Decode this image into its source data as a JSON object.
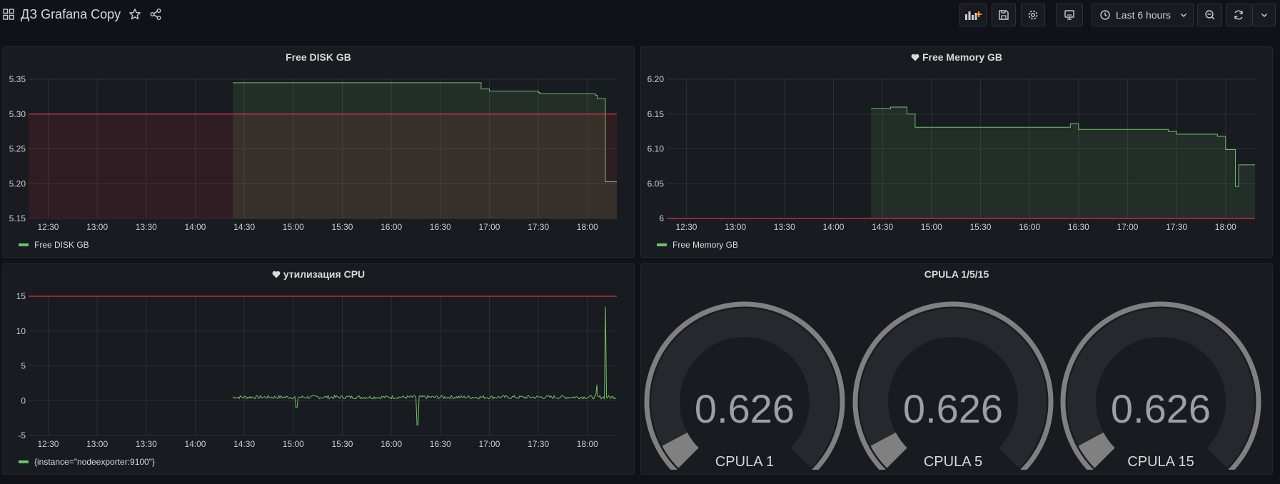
{
  "dashboard": {
    "title": "ДЗ Grafana Copy",
    "time_range": "Last 6 hours"
  },
  "toolbar": {
    "icons": [
      "add-panel-icon",
      "save-icon",
      "settings-icon",
      "tv-mode-icon",
      "clock-icon",
      "zoom-out-icon",
      "refresh-icon",
      "chevron-down-icon"
    ]
  },
  "colors": {
    "series_green": "#73bf69",
    "threshold_red": "#e02f44",
    "background": "#111217",
    "panel_bg": "#181b1f"
  },
  "x_ticks": [
    "12:30",
    "13:00",
    "13:30",
    "14:00",
    "14:30",
    "15:00",
    "15:30",
    "16:00",
    "16:30",
    "17:00",
    "17:30",
    "18:00"
  ],
  "panels": {
    "disk": {
      "title": "Free DISK GB",
      "legend": "Free DISK GB",
      "y_ticks": [
        "5.35",
        "5.30",
        "5.25",
        "5.20",
        "5.15"
      ]
    },
    "memory": {
      "title": "Free Memory GB",
      "legend": "Free Memory GB",
      "y_ticks": [
        "6.20",
        "6.15",
        "6.10",
        "6.05",
        "6"
      ]
    },
    "cpu": {
      "title": "утилизация CPU",
      "legend": "{instance=\"nodeexporter:9100\"}",
      "y_ticks": [
        "15",
        "10",
        "5",
        "0",
        "-5"
      ]
    },
    "cpula": {
      "title": "CPULA 1/5/15",
      "gauges": [
        {
          "label": "CPULA 1",
          "value": "0.626",
          "fraction": 0.0626
        },
        {
          "label": "CPULA 5",
          "value": "0.626",
          "fraction": 0.0626
        },
        {
          "label": "CPULA 15",
          "value": "0.626",
          "fraction": 0.0626
        }
      ]
    }
  },
  "chart_data": [
    {
      "type": "area",
      "title": "Free DISK GB",
      "x": [
        "14:23",
        "16:55",
        "17:00",
        "17:30",
        "17:31",
        "18:05",
        "18:06",
        "18:10",
        "18:11",
        "18:18"
      ],
      "series": [
        {
          "name": "Free DISK GB",
          "values": [
            5.345,
            5.336,
            5.333,
            5.331,
            5.329,
            5.327,
            5.322,
            5.322,
            5.203,
            5.203
          ]
        }
      ],
      "ylim": [
        5.15,
        5.35
      ],
      "threshold": 5.3,
      "legend": "bottom-left",
      "grid": true
    },
    {
      "type": "area",
      "title": "Free Memory GB",
      "x": [
        "14:23",
        "14:35",
        "14:45",
        "14:50",
        "16:25",
        "16:30",
        "17:25",
        "17:30",
        "17:55",
        "18:00",
        "18:05",
        "18:06",
        "18:08",
        "18:18"
      ],
      "series": [
        {
          "name": "Free Memory GB",
          "values": [
            6.158,
            6.16,
            6.15,
            6.131,
            6.136,
            6.128,
            6.125,
            6.121,
            6.118,
            6.099,
            6.099,
            6.046,
            6.077,
            6.077
          ]
        }
      ],
      "ylim": [
        6.0,
        6.2
      ],
      "threshold": 6.0,
      "legend": "bottom-left",
      "grid": true
    },
    {
      "type": "line",
      "title": "утилизация CPU",
      "x": [
        "14:23",
        "15:00",
        "15:02",
        "15:04",
        "16:00",
        "16:15",
        "16:16",
        "16:17",
        "18:00",
        "18:05",
        "18:06",
        "18:07",
        "18:10",
        "18:11",
        "18:12",
        "18:18"
      ],
      "series": [
        {
          "name": "{instance=\"nodeexporter:9100\"}",
          "values": [
            0.5,
            0.5,
            -1.0,
            0.5,
            0.5,
            0.5,
            -3.5,
            0.5,
            0.5,
            0.5,
            2.3,
            0.5,
            0.5,
            13.5,
            0.5,
            0.5
          ]
        }
      ],
      "ylim": [
        -5,
        15
      ],
      "threshold": 15,
      "legend": "bottom-left",
      "grid": true
    },
    {
      "type": "gauge",
      "title": "CPULA 1/5/15",
      "categories": [
        "CPULA 1",
        "CPULA 5",
        "CPULA 15"
      ],
      "values": [
        0.626,
        0.626,
        0.626
      ],
      "ylim": [
        0,
        10
      ]
    }
  ]
}
